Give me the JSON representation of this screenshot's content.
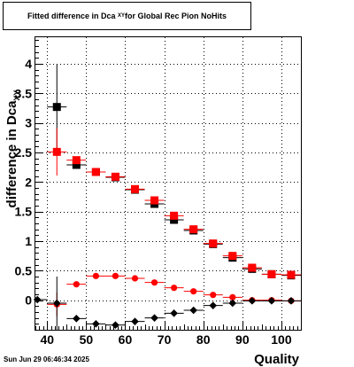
{
  "title": {
    "main": "Fitted difference in Dca",
    "sub": "XY",
    "suffix": " for Global Rec Pion NoHits"
  },
  "timestamp": "Sun Jun 29 06:46:34 2025",
  "colors": {
    "black": "#000000",
    "red": "#ff0000",
    "grid": "#000000"
  },
  "chart_data": {
    "type": "scatter",
    "title": "Fitted difference in Dca XY for Global Rec Pion NoHits",
    "xlabel": "Quality",
    "ylabel": "difference in Dca",
    "ylabel_sub": "XY",
    "xlim": [
      37,
      105
    ],
    "ylim": [
      -0.5,
      4.45
    ],
    "xticks": [
      40,
      50,
      60,
      70,
      80,
      90,
      100
    ],
    "yticks": [
      0,
      0.5,
      1,
      1.5,
      2,
      2.5,
      3,
      3.5,
      4
    ],
    "ytick_labels": [
      "0",
      "0.5",
      "1",
      "1.5",
      "2",
      "2.5",
      "3",
      "3.5",
      "4"
    ],
    "grid": true,
    "x_half_width": 2.5,
    "series": [
      {
        "color": "#000000",
        "marker": "square",
        "x": [
          42.5,
          47.5,
          52.5,
          57.5,
          62.5,
          67.5,
          72.5,
          77.5,
          82.5,
          87.5,
          92.5,
          97.5,
          102.5
        ],
        "y": [
          3.27,
          2.29,
          2.17,
          2.08,
          1.87,
          1.63,
          1.36,
          1.18,
          0.95,
          0.72,
          0.53,
          0.44,
          0.42
        ],
        "yerr": [
          0.72,
          0.04,
          0.03,
          0.03,
          0.03,
          0.03,
          0.03,
          0.03,
          0.03,
          0.03,
          0.03,
          0.03,
          0.03
        ]
      },
      {
        "color": "#ff0000",
        "marker": "square",
        "x": [
          42.5,
          47.5,
          52.5,
          57.5,
          62.5,
          67.5,
          72.5,
          77.5,
          82.5,
          87.5,
          92.5,
          97.5,
          102.5
        ],
        "y": [
          2.51,
          2.37,
          2.17,
          2.09,
          1.88,
          1.69,
          1.43,
          1.2,
          0.96,
          0.75,
          0.55,
          0.44,
          0.43
        ],
        "yerr": [
          0.4,
          0.04,
          0.03,
          0.03,
          0.03,
          0.03,
          0.03,
          0.03,
          0.03,
          0.03,
          0.03,
          0.03,
          0.03
        ]
      },
      {
        "color": "#ff0000",
        "marker": "circle",
        "x": [
          42.5,
          47.5,
          52.5,
          57.5,
          62.5,
          67.5,
          72.5,
          77.5,
          82.5,
          87.5,
          92.5,
          97.5,
          102.5
        ],
        "y": [
          -0.07,
          0.27,
          0.41,
          0.41,
          0.37,
          0.3,
          0.21,
          0.15,
          0.09,
          0.05,
          0.0,
          0.0,
          -0.01
        ],
        "yerr": [
          0.2,
          0.02,
          0.02,
          0.02,
          0.02,
          0.02,
          0.02,
          0.02,
          0.02,
          0.02,
          0.02,
          0.02,
          0.02
        ]
      },
      {
        "color": "#000000",
        "marker": "diamond",
        "x": [
          37.5,
          42.5,
          47.5,
          52.5,
          57.5,
          62.5,
          67.5,
          72.5,
          77.5,
          82.5,
          87.5,
          92.5,
          97.5,
          102.5
        ],
        "y": [
          0.01,
          -0.05,
          -0.31,
          -0.4,
          -0.42,
          -0.36,
          -0.3,
          -0.22,
          -0.17,
          -0.09,
          -0.05,
          -0.01,
          -0.01,
          -0.01
        ],
        "yerr": [
          0.02,
          0.45,
          0.03,
          0.03,
          0.03,
          0.03,
          0.03,
          0.03,
          0.03,
          0.03,
          0.03,
          0.03,
          0.03,
          0.03
        ]
      }
    ]
  }
}
